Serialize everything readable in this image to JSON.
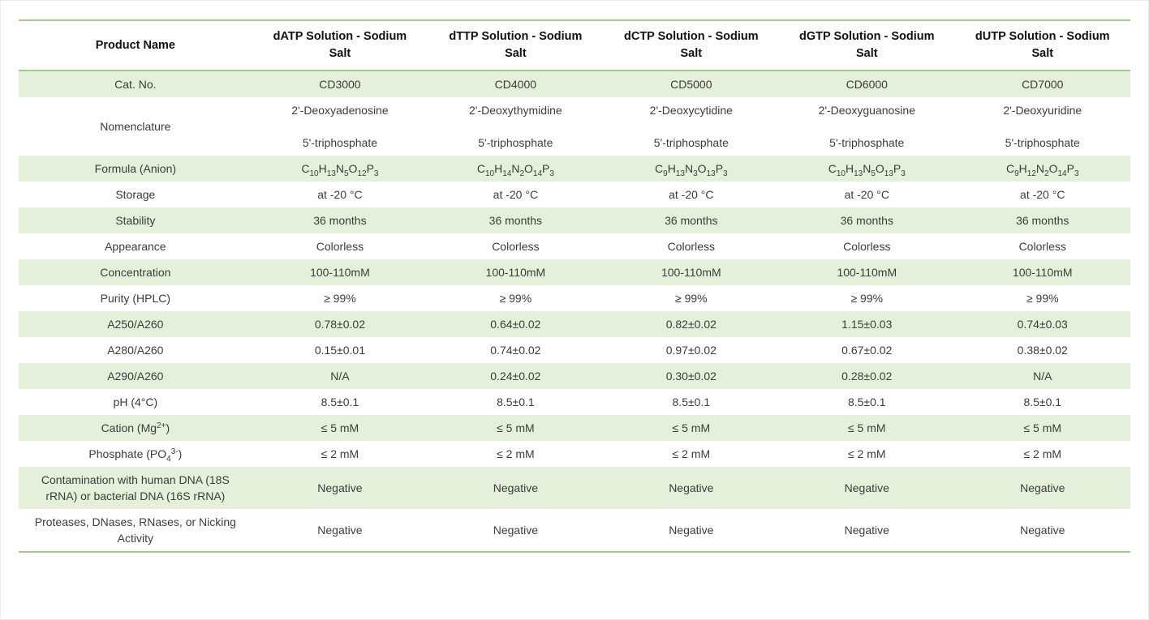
{
  "colors": {
    "accent": "#a5cc84",
    "row_shade": "#e4f0da",
    "body_text": "#3c3c3c",
    "heading_text": "#111111"
  },
  "table": {
    "header": {
      "label": "Product Name",
      "products": [
        "dATP Solution - Sodium Salt",
        "dTTP Solution - Sodium Salt",
        "dCTP Solution - Sodium Salt",
        "dGTP Solution - Sodium Salt",
        "dUTP Solution - Sodium Salt"
      ]
    },
    "rows": [
      {
        "label": "Cat. No.",
        "values": [
          "CD3000",
          "CD4000",
          "CD5000",
          "CD6000",
          "CD7000"
        ]
      },
      {
        "label": "Nomenclature",
        "line1": [
          "2'-Deoxyadenosine",
          "2'-Deoxythymidine",
          "2'-Deoxycytidine",
          "2'-Deoxyguanosine",
          "2'-Deoxyuridine"
        ],
        "line2": [
          "5'-triphosphate",
          "5'-triphosphate",
          "5'-triphosphate",
          "5'-triphosphate",
          "5'-triphosphate"
        ]
      },
      {
        "label": "Formula (Anion)",
        "values": [
          "C~10~H~13~N~5~O~12~P~3~",
          "C~10~H~14~N~2~O~14~P~3~",
          "C~9~H~13~N~3~O~13~P~3~",
          "C~10~H~13~N~5~O~13~P~3~",
          "C~9~H~12~N~2~O~14~P~3~"
        ]
      },
      {
        "label": "Storage",
        "values": [
          "at -20 °C",
          "at -20 °C",
          "at -20 °C",
          "at -20 °C",
          "at -20 °C"
        ]
      },
      {
        "label": "Stability",
        "values": [
          "36 months",
          "36 months",
          "36 months",
          "36 months",
          "36 months"
        ]
      },
      {
        "label": "Appearance",
        "values": [
          "Colorless",
          "Colorless",
          "Colorless",
          "Colorless",
          "Colorless"
        ]
      },
      {
        "label": "Concentration",
        "values": [
          "100-110mM",
          "100-110mM",
          "100-110mM",
          "100-110mM",
          "100-110mM"
        ]
      },
      {
        "label": "Purity (HPLC)",
        "values": [
          "≥ 99%",
          "≥ 99%",
          "≥ 99%",
          "≥ 99%",
          "≥ 99%"
        ]
      },
      {
        "label": "A250/A260",
        "values": [
          "0.78±0.02",
          "0.64±0.02",
          "0.82±0.02",
          "1.15±0.03",
          "0.74±0.03"
        ]
      },
      {
        "label": "A280/A260",
        "values": [
          "0.15±0.01",
          "0.74±0.02",
          "0.97±0.02",
          "0.67±0.02",
          "0.38±0.02"
        ]
      },
      {
        "label": "A290/A260",
        "values": [
          "N/A",
          "0.24±0.02",
          "0.30±0.02",
          "0.28±0.02",
          "N/A"
        ]
      },
      {
        "label": "pH (4°C)",
        "values": [
          "8.5±0.1",
          "8.5±0.1",
          "8.5±0.1",
          "8.5±0.1",
          "8.5±0.1"
        ]
      },
      {
        "label": "Cation (Mg^2+^)",
        "values": [
          "≤ 5 mM",
          "≤ 5 mM",
          "≤ 5 mM",
          "≤ 5 mM",
          "≤ 5 mM"
        ]
      },
      {
        "label": "Phosphate (PO~4~^3-^)",
        "values": [
          "≤ 2 mM",
          "≤ 2 mM",
          "≤ 2 mM",
          "≤ 2 mM",
          "≤ 2 mM"
        ]
      },
      {
        "label": "Contamination with human DNA (18S rRNA) or bacterial DNA (16S rRNA)",
        "values": [
          "Negative",
          "Negative",
          "Negative",
          "Negative",
          "Negative"
        ]
      },
      {
        "label": "Proteases, DNases, RNases, or Nicking Activity",
        "values": [
          "Negative",
          "Negative",
          "Negative",
          "Negative",
          "Negative"
        ]
      }
    ]
  }
}
